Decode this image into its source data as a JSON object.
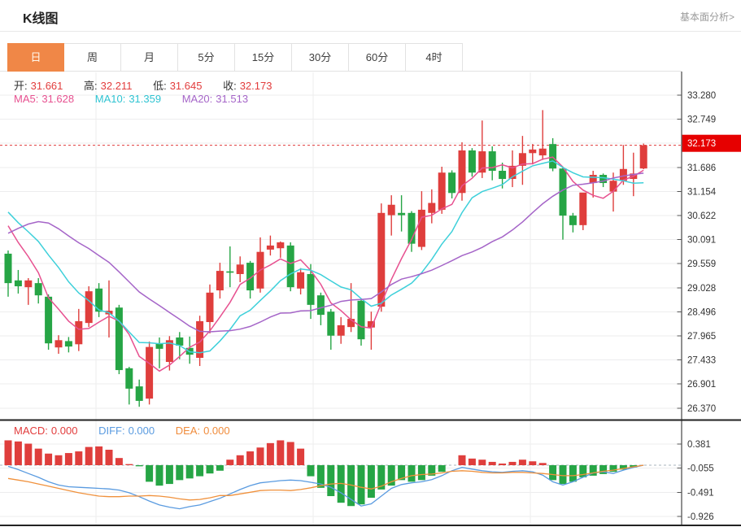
{
  "header": {
    "title": "K线图",
    "link": "基本面分析>"
  },
  "tabs": {
    "items": [
      "日",
      "周",
      "月",
      "5分",
      "15分",
      "30分",
      "60分",
      "4时"
    ],
    "active": "日"
  },
  "ohlc": {
    "open_label": "开:",
    "open": "31.661",
    "high_label": "高:",
    "high": "32.211",
    "low_label": "低:",
    "low": "31.645",
    "close_label": "收:",
    "close": "32.173"
  },
  "ma_header": {
    "ma5_label": "MA5:",
    "ma5": "31.628",
    "ma10_label": "MA10:",
    "ma10": "31.359",
    "ma20_label": "MA20:",
    "ma20": "31.513"
  },
  "macd_header": {
    "macd_label": "MACD:",
    "macd": "0.000",
    "diff_label": "DIFF:",
    "diff": "0.000",
    "dea_label": "DEA:",
    "dea": "0.000"
  },
  "colors": {
    "up_red": "#df3e3c",
    "down_green": "#26a545",
    "ma5_pink": "#e75190",
    "ma10_cyan": "#3ed0da",
    "ma20_purple": "#a565c8",
    "diff_blue": "#5a9be0",
    "dea_orange": "#f0913c",
    "tab_orange": "#f08747",
    "price_label_bg": "#e60000",
    "dotted_price_line": "#e03b3b",
    "grid": "#ededee",
    "axis": "#222222",
    "tick_text": "#333333"
  },
  "chart_data": [
    {
      "type": "candlestick",
      "title": "K线图 (日K)",
      "legend": [
        "MA5",
        "MA10",
        "MA20"
      ],
      "grid": true,
      "y_axis_side": "right",
      "y_tick_labels": [
        "33.280",
        "32.749",
        "32.173",
        "31.686",
        "31.154",
        "30.622",
        "30.091",
        "29.559",
        "29.028",
        "28.496",
        "27.965",
        "27.433",
        "26.901",
        "26.370"
      ],
      "highlight_tick_index": 2,
      "current_price": 32.173,
      "ylim": [
        26.3,
        33.3
      ],
      "ohlc_last": {
        "open": 31.661,
        "high": 32.211,
        "low": 31.645,
        "close": 32.173
      },
      "ma_periods": [
        5,
        10,
        20
      ],
      "ma_last_values": {
        "ma5": 31.628,
        "ma10": 31.359,
        "ma20": 31.513
      },
      "ma_seed_history": [
        26.6,
        26.9,
        27.3,
        27.8,
        28.4,
        30.4,
        30.9,
        31.3,
        31.5,
        31.6,
        31.55,
        31.4,
        31.2,
        31.0,
        30.8,
        30.6,
        30.9,
        30.75,
        30.65,
        30.55
      ],
      "candles_ohlc": [
        [
          29.78,
          29.85,
          28.83,
          29.13
        ],
        [
          29.19,
          29.42,
          28.9,
          29.06
        ],
        [
          29.04,
          29.24,
          28.65,
          29.19
        ],
        [
          29.13,
          29.24,
          28.68,
          28.86
        ],
        [
          28.83,
          28.88,
          27.66,
          27.8
        ],
        [
          27.71,
          27.98,
          27.57,
          27.87
        ],
        [
          27.85,
          27.94,
          27.6,
          27.73
        ],
        [
          27.78,
          28.56,
          27.63,
          28.29
        ],
        [
          28.25,
          29.06,
          28.16,
          28.95
        ],
        [
          29.01,
          29.13,
          28.38,
          28.5
        ],
        [
          28.44,
          29.19,
          27.93,
          28.52
        ],
        [
          28.59,
          28.65,
          27.12,
          27.21
        ],
        [
          27.25,
          27.28,
          26.45,
          26.8
        ],
        [
          26.85,
          27.0,
          26.4,
          26.53
        ],
        [
          26.58,
          27.84,
          26.45,
          27.72
        ],
        [
          27.8,
          27.93,
          27.25,
          27.68
        ],
        [
          27.39,
          27.96,
          27.2,
          27.87
        ],
        [
          27.93,
          28.05,
          27.45,
          27.75
        ],
        [
          27.7,
          27.95,
          27.35,
          27.55
        ],
        [
          27.48,
          28.41,
          27.3,
          28.29
        ],
        [
          28.27,
          29.1,
          28.02,
          28.92
        ],
        [
          28.97,
          29.58,
          28.79,
          29.4
        ],
        [
          29.39,
          29.94,
          29.04,
          29.36
        ],
        [
          29.33,
          29.72,
          29.15,
          29.54
        ],
        [
          29.58,
          29.62,
          28.79,
          28.97
        ],
        [
          29.01,
          30.14,
          28.92,
          29.82
        ],
        [
          29.87,
          30.18,
          29.74,
          29.96
        ],
        [
          29.9,
          30.05,
          29.69,
          30.03
        ],
        [
          29.96,
          30.03,
          28.95,
          29.04
        ],
        [
          29.01,
          29.46,
          28.88,
          29.37
        ],
        [
          29.33,
          29.55,
          28.34,
          28.65
        ],
        [
          28.86,
          28.92,
          28.2,
          28.43
        ],
        [
          28.5,
          28.56,
          27.66,
          27.97
        ],
        [
          27.97,
          28.38,
          27.79,
          28.2
        ],
        [
          28.16,
          29.13,
          28.05,
          28.34
        ],
        [
          28.74,
          28.79,
          27.75,
          27.89
        ],
        [
          28.15,
          28.5,
          27.66,
          28.29
        ],
        [
          28.61,
          30.89,
          28.5,
          30.68
        ],
        [
          30.63,
          31.07,
          30.18,
          30.86
        ],
        [
          30.68,
          31.07,
          30.27,
          30.63
        ],
        [
          30.68,
          30.72,
          29.82,
          30.0
        ],
        [
          29.93,
          31.16,
          29.86,
          30.75
        ],
        [
          30.68,
          31.2,
          30.45,
          30.9
        ],
        [
          30.75,
          31.7,
          30.66,
          31.57
        ],
        [
          31.57,
          31.62,
          31.0,
          31.12
        ],
        [
          31.12,
          32.24,
          30.95,
          32.06
        ],
        [
          32.06,
          32.11,
          31.48,
          31.57
        ],
        [
          31.57,
          32.72,
          31.45,
          32.04
        ],
        [
          32.04,
          32.15,
          31.4,
          31.61
        ],
        [
          31.61,
          31.79,
          31.22,
          31.43
        ],
        [
          31.43,
          32.06,
          31.25,
          31.72
        ],
        [
          31.72,
          32.38,
          31.3,
          32.0
        ],
        [
          32.0,
          32.2,
          31.75,
          32.08
        ],
        [
          31.95,
          32.95,
          31.85,
          32.1
        ],
        [
          32.2,
          32.33,
          31.6,
          31.66
        ],
        [
          31.66,
          31.7,
          30.09,
          30.62
        ],
        [
          30.62,
          30.68,
          30.25,
          30.41
        ],
        [
          30.41,
          30.95,
          30.3,
          31.13
        ],
        [
          31.34,
          31.61,
          31.02,
          31.52
        ],
        [
          31.52,
          31.55,
          31.25,
          31.34
        ],
        [
          31.15,
          31.57,
          30.71,
          31.39
        ],
        [
          31.39,
          32.18,
          31.3,
          31.65
        ],
        [
          31.43,
          32.01,
          31.05,
          31.55
        ],
        [
          31.661,
          32.211,
          31.645,
          32.173
        ]
      ]
    },
    {
      "type": "bar",
      "title": "MACD (12,26,9)",
      "legend": [
        "MACD",
        "DIFF",
        "DEA"
      ],
      "y_tick_values": [
        0.381,
        -0.055,
        -0.491,
        -0.926
      ],
      "y_tick_labels": [
        "0.381",
        "-0.055",
        "-0.491",
        "-0.926"
      ],
      "zero_line": 0,
      "last_values": {
        "macd": 0.0,
        "diff": 0.0,
        "dea": 0.0
      },
      "histogram": [
        0.45,
        0.43,
        0.39,
        0.3,
        0.21,
        0.18,
        0.22,
        0.25,
        0.33,
        0.34,
        0.28,
        0.13,
        0.02,
        -0.02,
        -0.3,
        -0.37,
        -0.34,
        -0.27,
        -0.24,
        -0.2,
        -0.15,
        -0.1,
        0.1,
        0.18,
        0.25,
        0.32,
        0.4,
        0.45,
        0.42,
        0.3,
        -0.2,
        -0.41,
        -0.56,
        -0.68,
        -0.74,
        -0.71,
        -0.59,
        -0.44,
        -0.37,
        -0.27,
        -0.3,
        -0.27,
        -0.19,
        -0.12,
        0.0,
        0.18,
        0.12,
        0.1,
        0.06,
        0.03,
        0.06,
        0.1,
        0.07,
        0.04,
        -0.27,
        -0.34,
        -0.3,
        -0.22,
        -0.19,
        -0.16,
        -0.12,
        -0.08,
        -0.04,
        0.0
      ],
      "diff_line": [
        -0.02,
        -0.08,
        -0.15,
        -0.22,
        -0.3,
        -0.36,
        -0.39,
        -0.4,
        -0.41,
        -0.42,
        -0.43,
        -0.45,
        -0.5,
        -0.57,
        -0.65,
        -0.72,
        -0.76,
        -0.79,
        -0.75,
        -0.72,
        -0.66,
        -0.6,
        -0.52,
        -0.44,
        -0.37,
        -0.32,
        -0.3,
        -0.28,
        -0.27,
        -0.28,
        -0.31,
        -0.34,
        -0.4,
        -0.5,
        -0.62,
        -0.74,
        -0.7,
        -0.56,
        -0.42,
        -0.35,
        -0.32,
        -0.3,
        -0.26,
        -0.19,
        -0.1,
        -0.04,
        -0.07,
        -0.1,
        -0.12,
        -0.13,
        -0.11,
        -0.1,
        -0.12,
        -0.18,
        -0.3,
        -0.36,
        -0.3,
        -0.22,
        -0.14,
        -0.12,
        -0.15,
        -0.09,
        -0.04,
        0.0
      ],
      "dea_line": [
        -0.24,
        -0.27,
        -0.3,
        -0.34,
        -0.38,
        -0.42,
        -0.46,
        -0.5,
        -0.53,
        -0.56,
        -0.57,
        -0.57,
        -0.56,
        -0.56,
        -0.55,
        -0.56,
        -0.58,
        -0.61,
        -0.63,
        -0.62,
        -0.59,
        -0.55,
        -0.55,
        -0.52,
        -0.49,
        -0.46,
        -0.45,
        -0.45,
        -0.46,
        -0.44,
        -0.41,
        -0.37,
        -0.34,
        -0.33,
        -0.36,
        -0.4,
        -0.43,
        -0.38,
        -0.3,
        -0.24,
        -0.19,
        -0.17,
        -0.16,
        -0.14,
        -0.11,
        -0.1,
        -0.11,
        -0.13,
        -0.14,
        -0.14,
        -0.13,
        -0.13,
        -0.14,
        -0.15,
        -0.17,
        -0.19,
        -0.19,
        -0.17,
        -0.14,
        -0.11,
        -0.09,
        -0.06,
        -0.03,
        0.0
      ]
    }
  ]
}
